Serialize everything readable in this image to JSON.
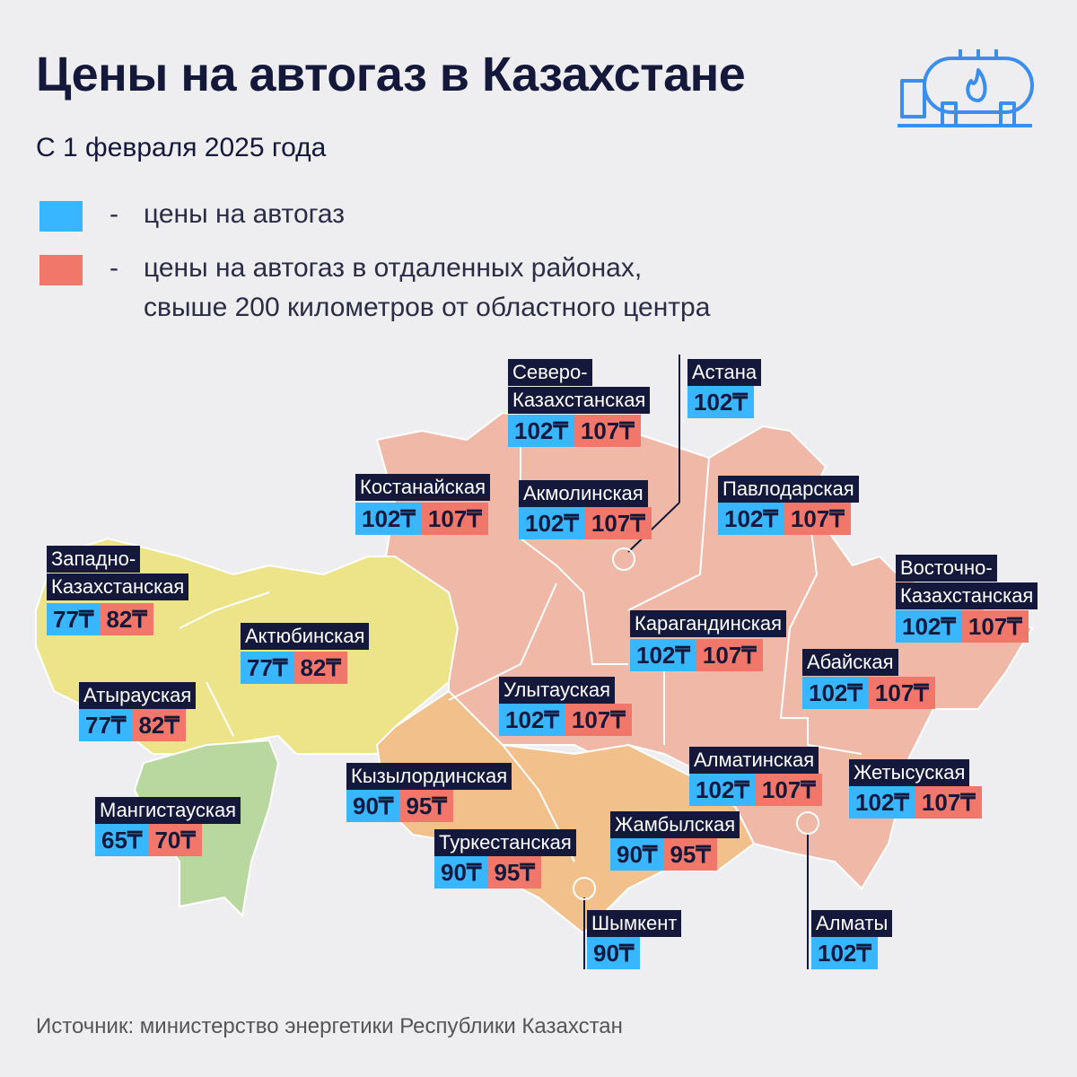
{
  "header": {
    "title": "Цены на автогаз в Казахстане",
    "subtitle": "С 1 февраля 2025 года"
  },
  "legend": [
    {
      "color": "#38b6ff",
      "text": [
        "цены на автогаз"
      ]
    },
    {
      "color": "#f0776a",
      "text": [
        "цены на автогаз в отдаленных районах,",
        "свыше 200 километров от областного центра"
      ]
    }
  ],
  "regions": [
    {
      "name": [
        "Северо-",
        "Казахстанская"
      ],
      "price": "102₸",
      "remote_price": "107₸"
    },
    {
      "name": [
        "Астана"
      ],
      "price": "102₸"
    },
    {
      "name": [
        "Костанайская"
      ],
      "price": "102₸",
      "remote_price": "107₸"
    },
    {
      "name": [
        "Акмолинская"
      ],
      "price": "102₸",
      "remote_price": "107₸"
    },
    {
      "name": [
        "Павлодарская"
      ],
      "price": "102₸",
      "remote_price": "107₸"
    },
    {
      "name": [
        "Западно-",
        "Казахстанская"
      ],
      "price": "77₸",
      "remote_price": "82₸"
    },
    {
      "name": [
        "Восточно-",
        "Казахстанская"
      ],
      "price": "102₸",
      "remote_price": "107₸"
    },
    {
      "name": [
        "Актюбинская"
      ],
      "price": "77₸",
      "remote_price": "82₸"
    },
    {
      "name": [
        "Карагандинская"
      ],
      "price": "102₸",
      "remote_price": "107₸"
    },
    {
      "name": [
        "Абайская"
      ],
      "price": "102₸",
      "remote_price": "107₸"
    },
    {
      "name": [
        "Улытауская"
      ],
      "price": "102₸",
      "remote_price": "107₸"
    },
    {
      "name": [
        "Атырауская"
      ],
      "price": "77₸",
      "remote_price": "82₸"
    },
    {
      "name": [
        "Кызылординская"
      ],
      "price": "90₸",
      "remote_price": "95₸"
    },
    {
      "name": [
        "Алматинская"
      ],
      "price": "102₸",
      "remote_price": "107₸"
    },
    {
      "name": [
        "Жетысуская"
      ],
      "price": "102₸",
      "remote_price": "107₸"
    },
    {
      "name": [
        "Мангистауская"
      ],
      "price": "65₸",
      "remote_price": "70₸"
    },
    {
      "name": [
        "Жамбылская"
      ],
      "price": "90₸",
      "remote_price": "95₸"
    },
    {
      "name": [
        "Туркестанская"
      ],
      "price": "90₸",
      "remote_price": "95₸"
    },
    {
      "name": [
        "Шымкент"
      ],
      "price": "90₸"
    },
    {
      "name": [
        "Алматы"
      ],
      "price": "102₸"
    }
  ],
  "source": "Источник: министерство энергетики Республики Казахстан"
}
